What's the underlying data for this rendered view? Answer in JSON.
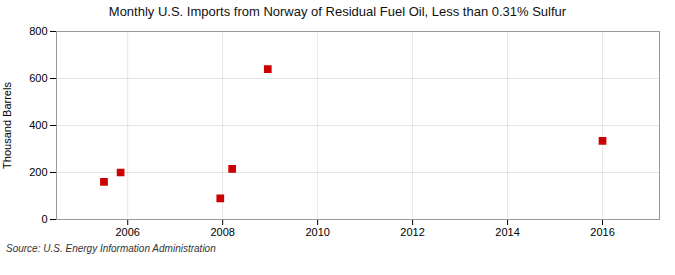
{
  "chart_data": {
    "type": "scatter",
    "title": "Monthly U.S. Imports from Norway of Residual Fuel Oil, Less than 0.31% Sulfur",
    "ylabel": "Thousand Barrels",
    "annotation": "Source: U.S. Energy Information Administration",
    "x": [
      2005.5,
      2005.85,
      2007.95,
      2008.2,
      2008.95,
      2016.0
    ],
    "values": [
      160,
      200,
      90,
      215,
      640,
      335
    ],
    "color": "#cc0000",
    "marker": "square",
    "xlim": [
      2004.5,
      2017.2
    ],
    "ylim": [
      0,
      800
    ],
    "xticks": [
      2006,
      2008,
      2010,
      2012,
      2014,
      2016
    ],
    "yticks": [
      0,
      200,
      400,
      600,
      800
    ],
    "grid": true
  }
}
